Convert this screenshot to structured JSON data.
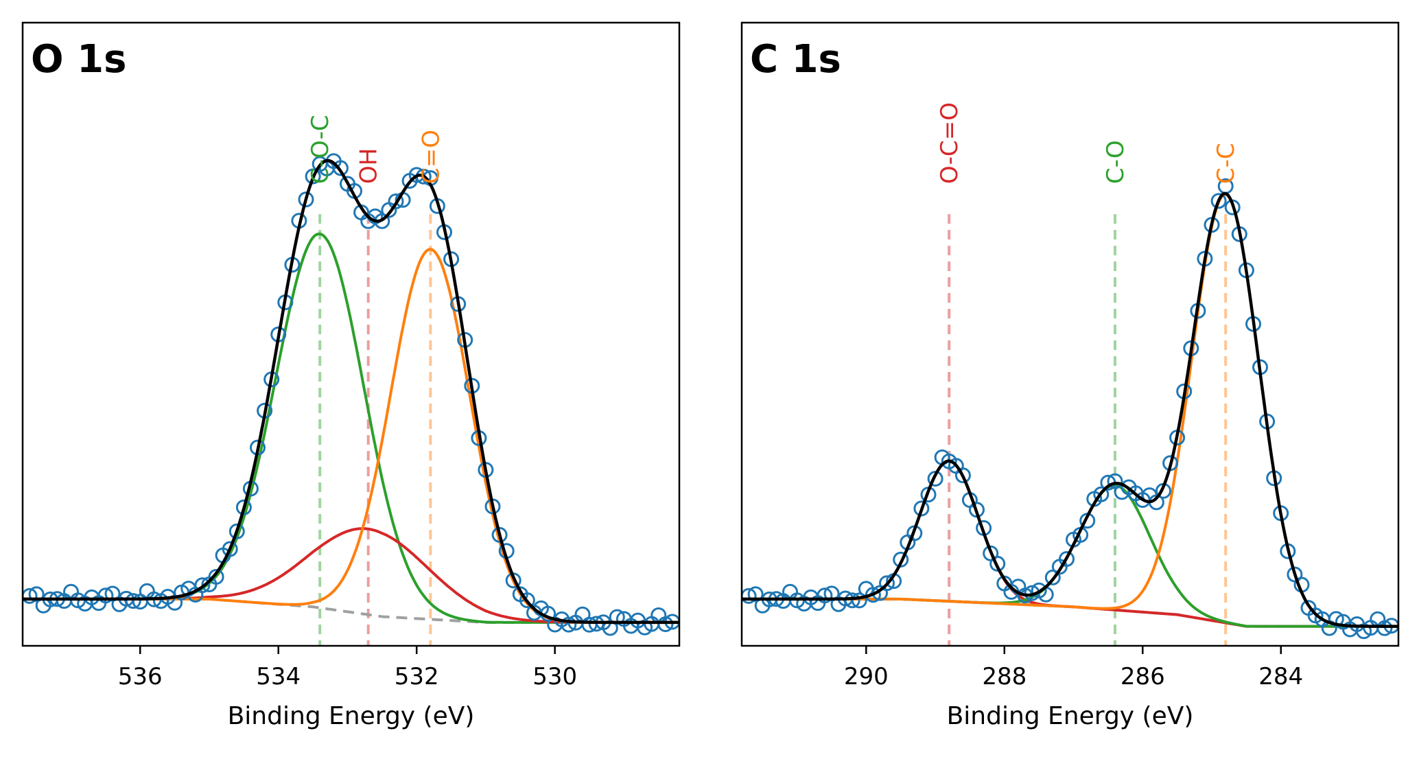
{
  "colors": {
    "marker": "#1f77b4",
    "fit": "#000000",
    "background": "#a0a0a0",
    "green": "#2ca02c",
    "red": "#d62728",
    "orange": "#ff7f0e"
  },
  "chart_data": [
    {
      "type": "line",
      "title": "O 1s",
      "xlabel": "Binding Energy (eV)",
      "ylabel": "",
      "xlim": [
        537.7,
        528.2
      ],
      "x_reversed": true,
      "grid": false,
      "xticks": [
        536,
        534,
        532,
        530
      ],
      "tick_labels": [
        "536",
        "534",
        "532",
        "530"
      ],
      "data_range": [
        537.6,
        528.3
      ],
      "data_step": 0.1,
      "background": [
        [
          537.7,
          0.02
        ],
        [
          535,
          0.02
        ],
        [
          533.5,
          0.0
        ],
        [
          532.5,
          -0.025
        ],
        [
          531,
          -0.04
        ],
        [
          528.2,
          -0.04
        ]
      ],
      "components": [
        {
          "label": "C-O-C",
          "center": 533.4,
          "amplitude": 0.96,
          "fwhm": 1.5,
          "color": "#2ca02c"
        },
        {
          "label": "OH",
          "center": 532.7,
          "amplitude": 0.22,
          "fwhm": 2.0,
          "color": "#d62728"
        },
        {
          "label": "C=O",
          "center": 531.8,
          "amplitude": 0.95,
          "fwhm": 1.35,
          "color": "#ff7f0e"
        }
      ],
      "markers": [
        {
          "label": "C-O-C",
          "x": 533.4,
          "color": "#2ca02c"
        },
        {
          "label": "OH",
          "x": 532.7,
          "color": "#d62728"
        },
        {
          "label": "C=O",
          "x": 531.8,
          "color": "#ff7f0e"
        }
      ],
      "ylim": [
        -0.1,
        1.5
      ]
    },
    {
      "type": "line",
      "title": "C 1s",
      "xlabel": "Binding Energy (eV)",
      "ylabel": "",
      "xlim": [
        291.8,
        282.3
      ],
      "x_reversed": true,
      "grid": false,
      "xticks": [
        290,
        288,
        286,
        284
      ],
      "tick_labels": [
        "290",
        "288",
        "286",
        "284"
      ],
      "data_range": [
        291.7,
        282.4
      ],
      "data_step": 0.1,
      "background": [
        [
          291.8,
          0.02
        ],
        [
          289.5,
          0.02
        ],
        [
          287,
          0.0
        ],
        [
          285.5,
          -0.02
        ],
        [
          284.5,
          -0.05
        ],
        [
          282.3,
          -0.05
        ]
      ],
      "components": [
        {
          "label": "O-C=O",
          "center": 288.8,
          "amplitude": 0.36,
          "fwhm": 1.0,
          "color": "#d62728"
        },
        {
          "label": "C-O",
          "center": 286.4,
          "amplitude": 0.32,
          "fwhm": 1.2,
          "color": "#2ca02c"
        },
        {
          "label": "C-C",
          "center": 284.8,
          "amplitude": 1.1,
          "fwhm": 1.15,
          "color": "#ff7f0e"
        }
      ],
      "markers": [
        {
          "label": "O-C=O",
          "x": 288.8,
          "color": "#d62728"
        },
        {
          "label": "C-O",
          "x": 286.4,
          "color": "#2ca02c"
        },
        {
          "label": "C-C",
          "x": 284.8,
          "color": "#ff7f0e"
        }
      ],
      "ylim": [
        -0.1,
        1.5
      ]
    }
  ]
}
